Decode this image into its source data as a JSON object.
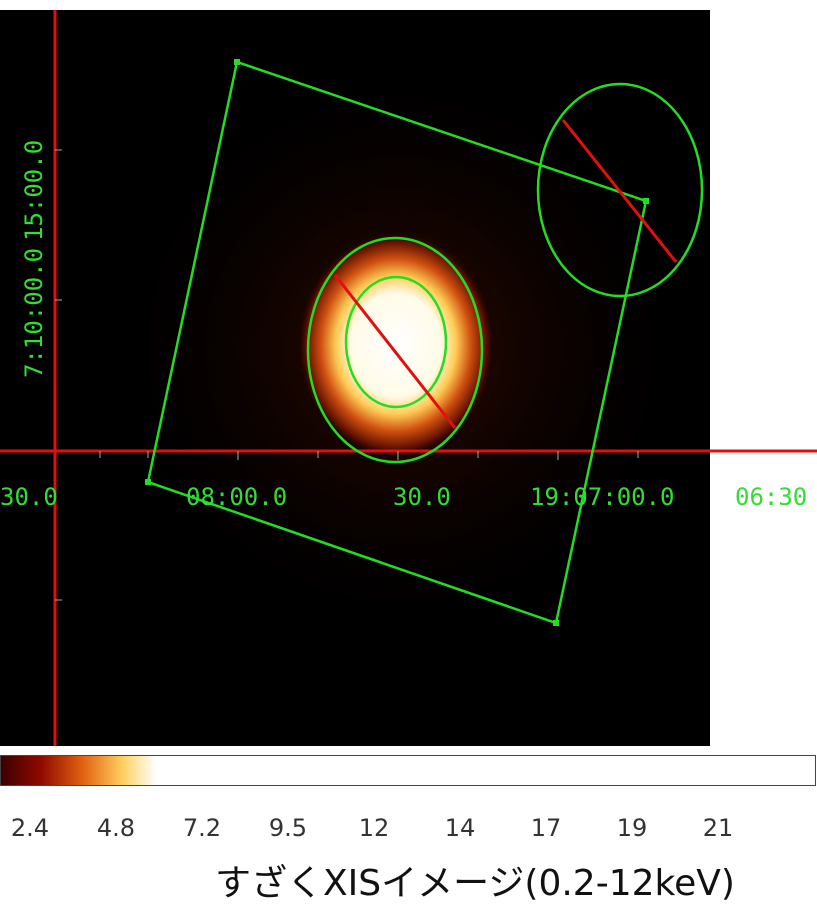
{
  "y_labels": [
    "7:10:00.0",
    "15:00.0"
  ],
  "x_labels": [
    "30.0",
    "08:00.0",
    "30.0",
    "19:07:00.0",
    "06:30"
  ],
  "colorbar": {
    "ticks": [
      2.4,
      4.8,
      7.2,
      9.5,
      12,
      14,
      17,
      19,
      21
    ]
  },
  "caption": "すざくXISイメージ(0.2-12keV)"
}
